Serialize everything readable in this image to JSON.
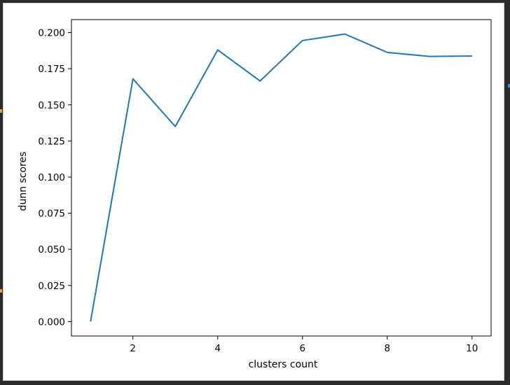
{
  "colors": {
    "background": "#2b2b2b",
    "figure": "#ffffff",
    "line": "#1f77b4",
    "accent_blue": "#3d8ee0",
    "accent_orange": "#e8a33a"
  },
  "chart_data": {
    "type": "line",
    "title": "",
    "xlabel": "clusters count",
    "ylabel": "dunn scores",
    "xlim": [
      0.55,
      10.45
    ],
    "ylim": [
      -0.01,
      0.209
    ],
    "x_ticks": [
      2,
      4,
      6,
      8,
      10
    ],
    "y_ticks": [
      0.0,
      0.025,
      0.05,
      0.075,
      0.1,
      0.125,
      0.15,
      0.175,
      0.2
    ],
    "x_tick_labels": [
      "2",
      "4",
      "6",
      "8",
      "10"
    ],
    "y_tick_labels": [
      "0.000",
      "0.025",
      "0.050",
      "0.075",
      "0.100",
      "0.125",
      "0.150",
      "0.175",
      "0.200"
    ],
    "grid": false,
    "series": [
      {
        "x": [
          1,
          2,
          3,
          4,
          5,
          6,
          7,
          8,
          9,
          10
        ],
        "values": [
          0.0,
          0.168,
          0.135,
          0.188,
          0.1665,
          0.1945,
          0.199,
          0.1863,
          0.1835,
          0.1838
        ],
        "color": "#1f77b4"
      }
    ]
  }
}
